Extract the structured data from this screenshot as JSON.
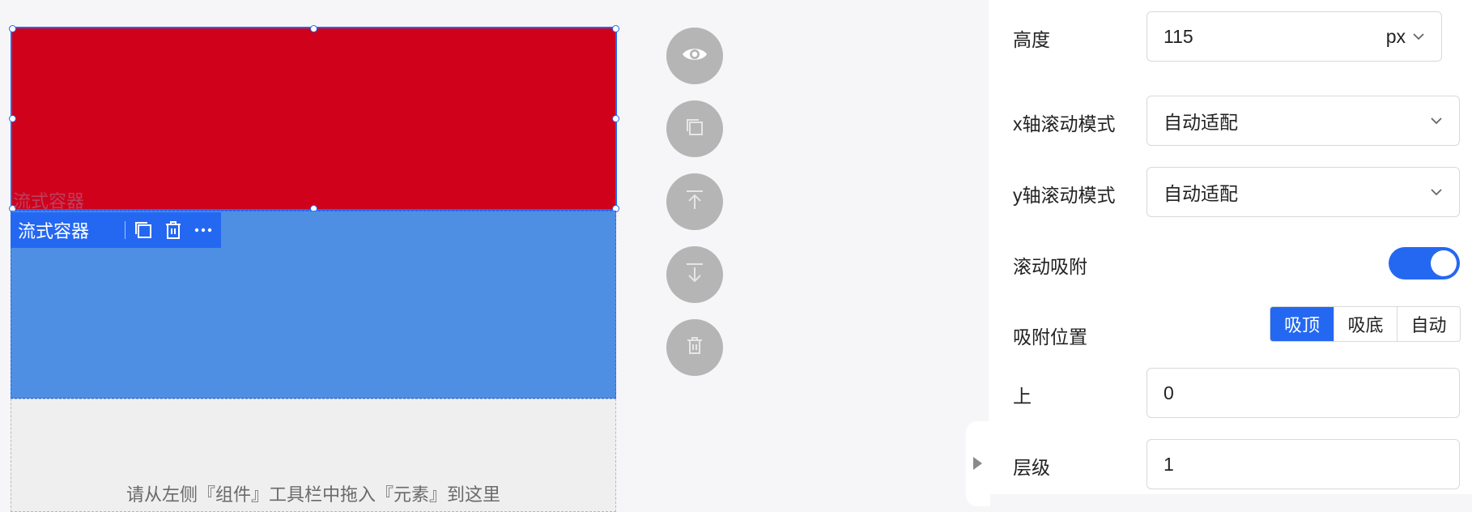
{
  "canvas": {
    "ghost_label": "流式容器",
    "toolbar_label": "流式容器",
    "drop_hint": "请从左侧『组件』工具栏中拖入『元素』到这里",
    "colors": {
      "red_block": "#d0021b",
      "blue_block": "#4f8fe3",
      "selection": "#2468f2"
    }
  },
  "toolbar_icons": [
    "copy-icon",
    "delete-icon",
    "more-icon"
  ],
  "floating_actions": [
    "eye-icon",
    "copy-icon",
    "move-up-icon",
    "move-down-icon",
    "delete-icon"
  ],
  "panel": {
    "height": {
      "label": "高度",
      "value": "115",
      "unit": "px"
    },
    "x_scroll": {
      "label": "x轴滚动模式",
      "value": "自动适配"
    },
    "y_scroll": {
      "label": "y轴滚动模式",
      "value": "自动适配"
    },
    "scroll_snap": {
      "label": "滚动吸附",
      "enabled": true
    },
    "snap_position": {
      "label": "吸附位置",
      "options": [
        "吸顶",
        "吸底",
        "自动"
      ],
      "selected": "吸顶"
    },
    "top": {
      "label": "上",
      "value": "0"
    },
    "z_index": {
      "label": "层级",
      "value": "1"
    }
  }
}
